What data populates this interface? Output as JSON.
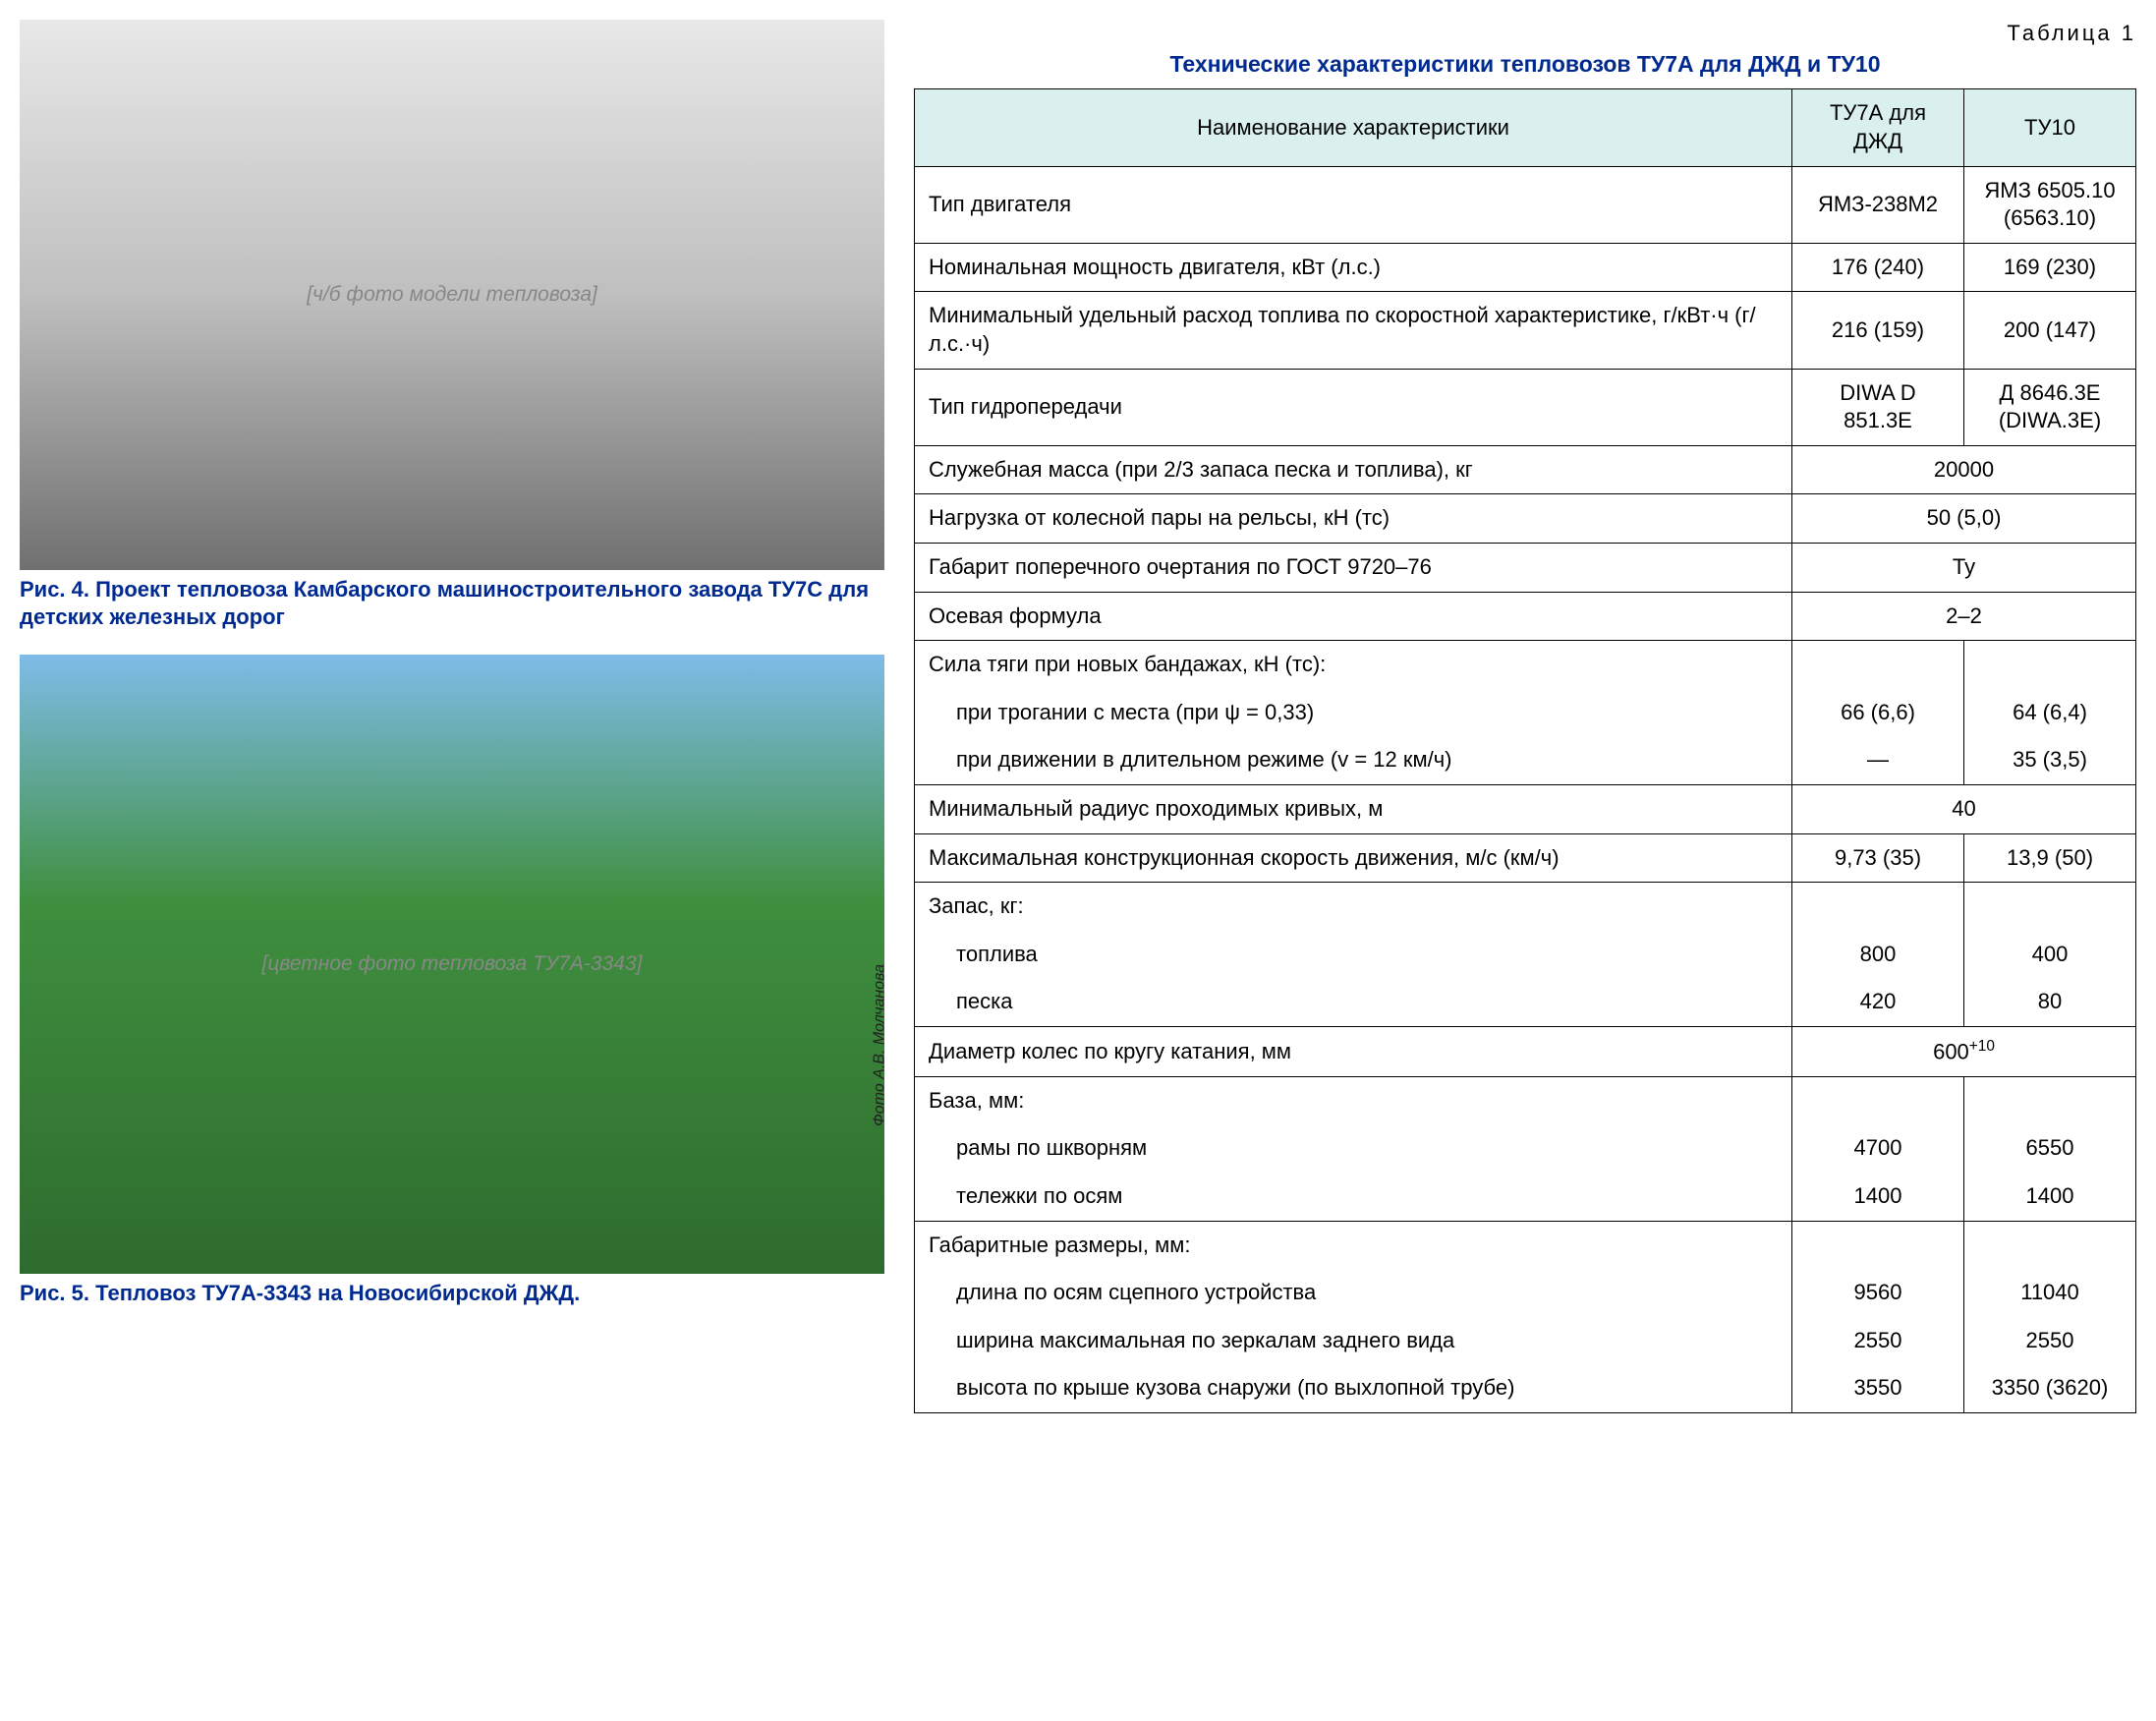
{
  "figures": {
    "fig4": {
      "placeholder": "[ч/б фото модели тепловоза]",
      "caption": "Рис. 4. Проект тепловоза Камбарского машиностроительного завода ТУ7С для детских железных дорог"
    },
    "fig5": {
      "placeholder": "[цветное фото тепловоза ТУ7А-3343]",
      "credit": "Фото А.В. Молчанова",
      "caption": "Рис. 5. Тепловоз ТУ7А-3343 на Новосибирской ДЖД."
    }
  },
  "table": {
    "label": "Таблица 1",
    "title": "Технические характеристики тепловозов ТУ7А для ДЖД и ТУ10",
    "header_bg": "#d9f0ef",
    "border_color": "#000000",
    "columns": {
      "name": "Наименование характеристики",
      "tu7a": "ТУ7А для ДЖД",
      "tu10": "ТУ10"
    },
    "rows": [
      {
        "type": "split",
        "name": "Тип двигателя",
        "tu7a": "ЯМЗ-238М2",
        "tu10": "ЯМЗ 6505.10 (6563.10)"
      },
      {
        "type": "split",
        "name": "Номинальная мощность двигателя, кВт (л.с.)",
        "tu7a": "176 (240)",
        "tu10": "169 (230)"
      },
      {
        "type": "split",
        "name": "Минимальный удельный расход топлива по скоростной характеристике, г/кВт·ч (г/л.с.·ч)",
        "tu7a": "216 (159)",
        "tu10": "200 (147)"
      },
      {
        "type": "split",
        "name": "Тип гидропередачи",
        "tu7a": "DIWA D 851.3E",
        "tu10": "Д 8646.3Е (DIWA.3E)"
      },
      {
        "type": "merged",
        "name": "Служебная масса (при 2/3 запаса песка и топлива), кг",
        "val": "20000"
      },
      {
        "type": "merged",
        "name": "Нагрузка от колесной пары на рельсы, кН (тс)",
        "val": "50 (5,0)"
      },
      {
        "type": "merged",
        "name": "Габарит поперечного очертания по ГОСТ 9720–76",
        "val": "Ту"
      },
      {
        "type": "merged",
        "name": "Осевая формула",
        "val": "2–2"
      },
      {
        "type": "group-head",
        "name": "Сила тяги при новых бандажах, кН (тс):"
      },
      {
        "type": "split-sub",
        "name": "при трогании с места (при ψ = 0,33)",
        "tu7a": "66 (6,6)",
        "tu10": "64 (6,4)"
      },
      {
        "type": "split-sub-last",
        "name": "при движении в длительном режиме (v = 12 км/ч)",
        "tu7a": "—",
        "tu10": "35 (3,5)"
      },
      {
        "type": "merged",
        "name": "Минимальный радиус проходимых кривых, м",
        "val": "40"
      },
      {
        "type": "split",
        "name": "Максимальная конструкционная скорость движения, м/с (км/ч)",
        "tu7a": "9,73 (35)",
        "tu10": "13,9 (50)"
      },
      {
        "type": "group-head",
        "name": "Запас, кг:"
      },
      {
        "type": "split-sub",
        "name": "топлива",
        "tu7a": "800",
        "tu10": "400"
      },
      {
        "type": "split-sub-last",
        "name": "песка",
        "tu7a": "420",
        "tu10": "80"
      },
      {
        "type": "merged-html",
        "name": "Диаметр колес по кругу катания, мм",
        "val_html": "600<sup>+10</sup>"
      },
      {
        "type": "group-head",
        "name": "База, мм:"
      },
      {
        "type": "split-sub",
        "name": "рамы по шкворням",
        "tu7a": "4700",
        "tu10": "6550"
      },
      {
        "type": "split-sub-last",
        "name": "тележки по осям",
        "tu7a": "1400",
        "tu10": "1400"
      },
      {
        "type": "group-head",
        "name": "Габаритные размеры, мм:"
      },
      {
        "type": "split-sub",
        "name": "длина по осям сцепного устройства",
        "tu7a": "9560",
        "tu10": "11040"
      },
      {
        "type": "split-sub",
        "name": "ширина максимальная по зеркалам заднего вида",
        "tu7a": "2550",
        "tu10": "2550"
      },
      {
        "type": "split-sub-last",
        "name": "высота по крыше кузова снаружи (по выхлопной трубе)",
        "tu7a": "3550",
        "tu10": "3350 (3620)"
      }
    ]
  },
  "colors": {
    "caption_blue": "#002a8f",
    "page_bg": "#ffffff",
    "text": "#000000"
  }
}
